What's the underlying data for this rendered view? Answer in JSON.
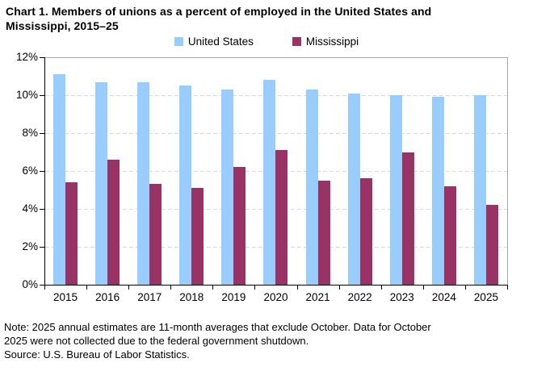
{
  "title": {
    "line1": "Chart 1. Members of unions as a percent of employed in the United States and",
    "line2": "Mississippi,  2015–25"
  },
  "chart_data": {
    "type": "bar",
    "title": "Chart 1. Members of unions as a percent of employed in the United States and Mississippi, 2015–25",
    "categories": [
      "2015",
      "2016",
      "2017",
      "2018",
      "2019",
      "2020",
      "2021",
      "2022",
      "2023",
      "2024",
      "2025"
    ],
    "series": [
      {
        "name": "United States",
        "color": "#99CCFF",
        "values": [
          11.1,
          10.7,
          10.7,
          10.5,
          10.3,
          10.8,
          10.3,
          10.1,
          10.0,
          9.9,
          10.0
        ]
      },
      {
        "name": "Mississippi",
        "color": "#993366",
        "values": [
          5.4,
          6.6,
          5.3,
          5.1,
          6.2,
          7.1,
          5.5,
          5.6,
          7.0,
          5.2,
          4.2
        ]
      }
    ],
    "xlabel": "",
    "ylabel": "",
    "ylim": [
      0,
      12
    ],
    "ytick_step": 2,
    "ytick_suffix": "%",
    "grid": "horizontal-dashed",
    "legend_position": "top-center"
  },
  "footer": {
    "note_line1": "Note: 2025 annual estimates are 11-month averages that exclude October. Data for October",
    "note_line2": "2025 were not collected due to the federal government shutdown.",
    "source": "Source: U.S. Bureau of Labor Statistics."
  },
  "colors": {
    "united_states": "#99CCFF",
    "mississippi": "#993366",
    "gridline": "#D9D9D9",
    "plot_border": "#A6A6A6",
    "axis": "#000000"
  }
}
